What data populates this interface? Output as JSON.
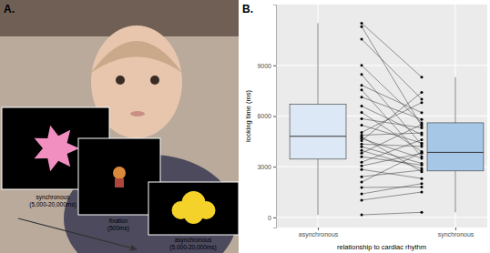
{
  "chart_data": {
    "type": "box",
    "title": "B.",
    "categories": [
      "asynchronous",
      "synchronous"
    ],
    "colors": [
      "#dce8f5",
      "#a6c8e6"
    ],
    "x_label": "relationship to cardiac rhythm",
    "y_label": "looking time (ms)",
    "ylim": [
      -600,
      12600
    ],
    "yticks": [
      0,
      3000,
      6000,
      9000
    ],
    "grid": true,
    "boxes": [
      {
        "min": 150,
        "q1": 3450,
        "median": 4800,
        "q3": 6700,
        "max": 11500
      },
      {
        "min": 300,
        "q1": 2750,
        "median": 3850,
        "q3": 5600,
        "max": 8300
      }
    ],
    "paired": [
      [
        11500,
        8300
      ],
      [
        11300,
        5400
      ],
      [
        10550,
        7000
      ],
      [
        9000,
        5600
      ],
      [
        8460,
        4300
      ],
      [
        7820,
        6200
      ],
      [
        7550,
        3600
      ],
      [
        7120,
        5800
      ],
      [
        6590,
        4900
      ],
      [
        6210,
        3900
      ],
      [
        5840,
        5300
      ],
      [
        5460,
        4400
      ],
      [
        5030,
        6800
      ],
      [
        4870,
        5000
      ],
      [
        4770,
        2700
      ],
      [
        4660,
        3500
      ],
      [
        4550,
        7400
      ],
      [
        4340,
        4200
      ],
      [
        4180,
        3200
      ],
      [
        3960,
        2900
      ],
      [
        3800,
        5500
      ],
      [
        3590,
        3100
      ],
      [
        3270,
        4600
      ],
      [
        3050,
        3800
      ],
      [
        2840,
        2300
      ],
      [
        2410,
        2800
      ],
      [
        2090,
        3850
      ],
      [
        1770,
        1800
      ],
      [
        1390,
        2000
      ],
      [
        1020,
        1500
      ],
      [
        150,
        300
      ]
    ]
  },
  "stimulus_panel": {
    "label": "A.",
    "screens": [
      {
        "condition": "synchronous",
        "duration": "(5,000-20,000ms)"
      },
      {
        "condition": "fixation",
        "duration": "(500ms)"
      },
      {
        "condition": "asynchronous",
        "duration": "(5,000-20,000ms)"
      }
    ]
  }
}
